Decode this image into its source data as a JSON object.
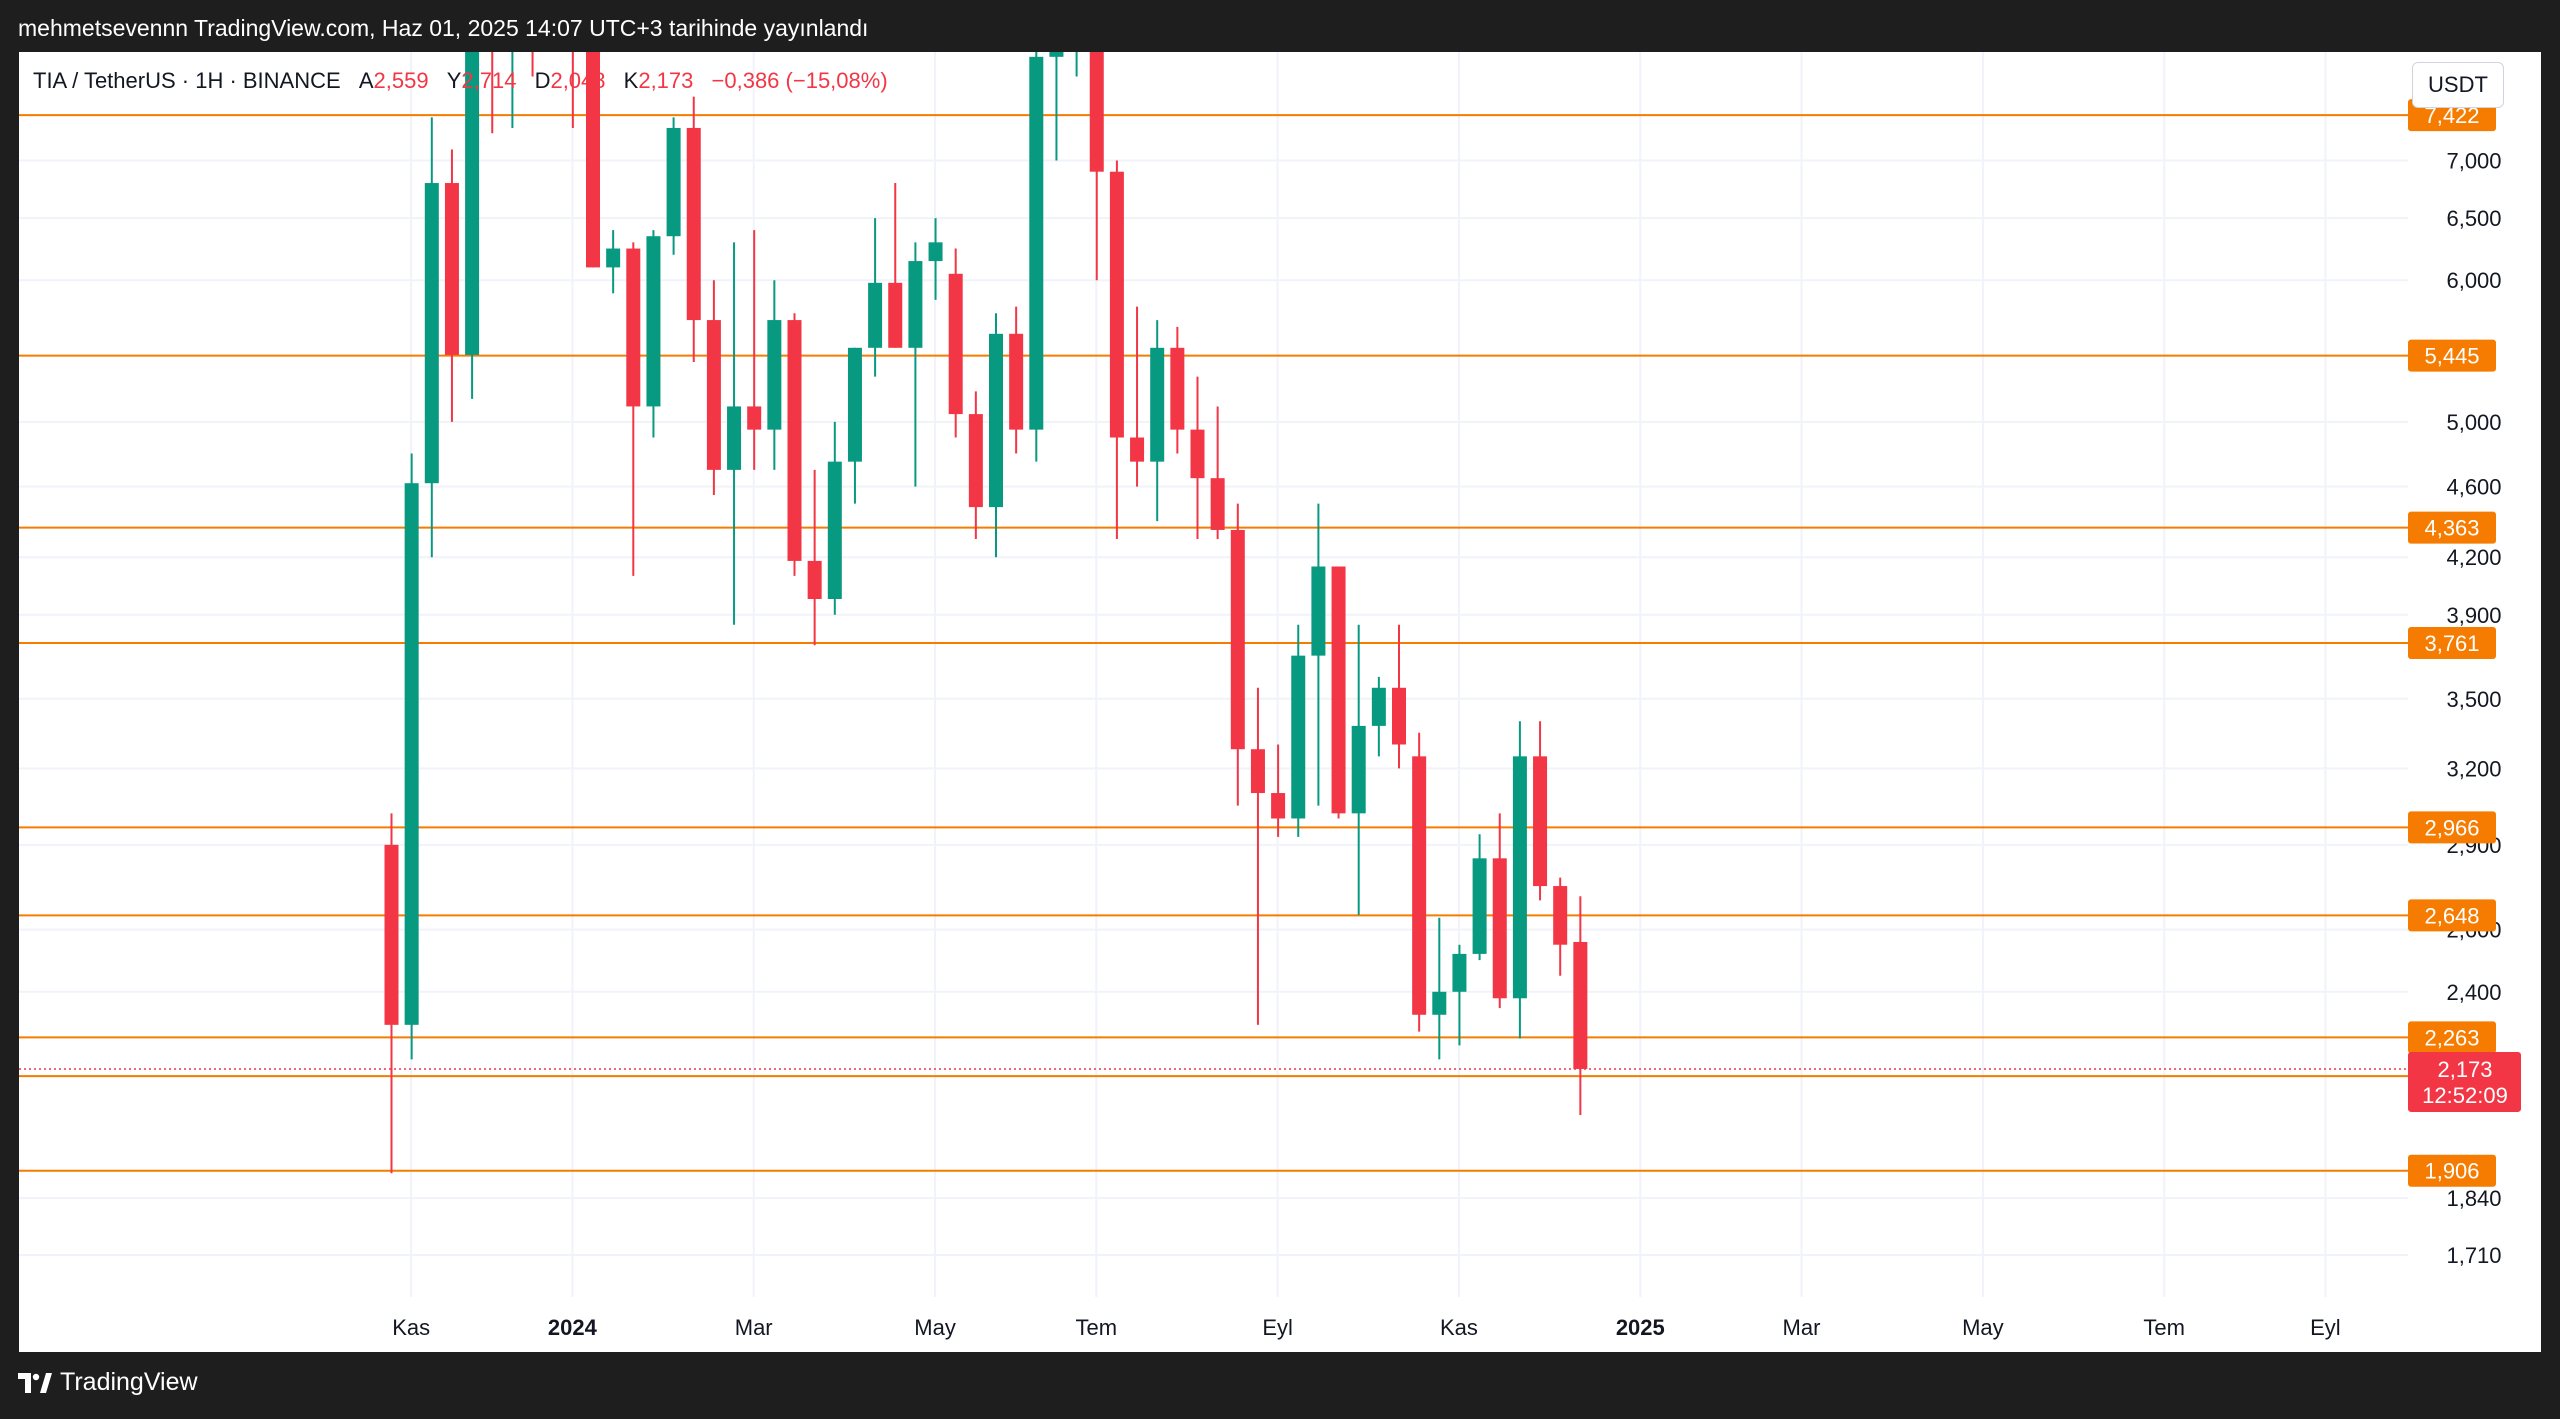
{
  "header": {
    "published_text": "mehmetsevennn TradingView.com, Haz 01, 2025 14:07 UTC+3 tarihinde yayınlandı"
  },
  "legend": {
    "symbol": "TIA / TetherUS · 1H · BINANCE",
    "open_label": "A",
    "open_value": "2,559",
    "high_label": "Y",
    "high_value": "2,714",
    "low_label": "D",
    "low_value": "2,048",
    "close_label": "K",
    "close_value": "2,173",
    "change": "−0,386 (−15,08%)"
  },
  "currency": "USDT",
  "footer": {
    "brand": "TradingView"
  },
  "colors": {
    "up": "#089981",
    "down": "#f23645",
    "level": "#f57c00",
    "grid": "#f0f3fa",
    "text": "#131722"
  },
  "chart_data": {
    "type": "candlestick",
    "y_scale": "log",
    "ylim": [
      1.62,
      8.05
    ],
    "y_ticks": [
      {
        "value": 7.0,
        "label": "7,000"
      },
      {
        "value": 6.5,
        "label": "6,500"
      },
      {
        "value": 6.0,
        "label": "6,000"
      },
      {
        "value": 5.0,
        "label": "5,000"
      },
      {
        "value": 4.6,
        "label": "4,600"
      },
      {
        "value": 4.2,
        "label": "4,200"
      },
      {
        "value": 3.9,
        "label": "3,900"
      },
      {
        "value": 3.5,
        "label": "3,500"
      },
      {
        "value": 3.2,
        "label": "3,200"
      },
      {
        "value": 2.9,
        "label": "2,900"
      },
      {
        "value": 2.6,
        "label": "2,600"
      },
      {
        "value": 2.4,
        "label": "2,400"
      },
      {
        "value": 1.84,
        "label": "1,840"
      },
      {
        "value": 1.71,
        "label": "1,710"
      }
    ],
    "x_ticks": [
      {
        "index": 1.0,
        "label": "Kas",
        "bold": false
      },
      {
        "index": 9.0,
        "label": "2024",
        "bold": true
      },
      {
        "index": 18.0,
        "label": "Mar",
        "bold": false
      },
      {
        "index": 27.0,
        "label": "May",
        "bold": false
      },
      {
        "index": 35.0,
        "label": "Tem",
        "bold": false
      },
      {
        "index": 44.0,
        "label": "Eyl",
        "bold": false
      },
      {
        "index": 53.0,
        "label": "Kas",
        "bold": false
      },
      {
        "index": 62.0,
        "label": "2025",
        "bold": true
      },
      {
        "index": 70.0,
        "label": "Mar",
        "bold": false
      },
      {
        "index": 79.0,
        "label": "May",
        "bold": false
      },
      {
        "index": 88.0,
        "label": "Tem",
        "bold": false
      },
      {
        "index": 96.0,
        "label": "Eyl",
        "bold": false
      }
    ],
    "levels": [
      {
        "value": 7.422,
        "label": "7,422"
      },
      {
        "value": 5.445,
        "label": "5,445"
      },
      {
        "value": 4.363,
        "label": "4,363"
      },
      {
        "value": 3.761,
        "label": "3,761"
      },
      {
        "value": 2.966,
        "label": "2,966"
      },
      {
        "value": 2.648,
        "label": "2,648"
      },
      {
        "value": 2.263,
        "label": "2,263"
      },
      {
        "value": 2.153,
        "label": "2,153"
      },
      {
        "value": 1.906,
        "label": "1,906"
      }
    ],
    "last_price": {
      "value": 2.173,
      "label": "2,173",
      "countdown": "12:52:09"
    },
    "candles": [
      {
        "o": 2.9,
        "h": 3.02,
        "l": 1.9,
        "c": 2.3
      },
      {
        "o": 2.3,
        "h": 4.8,
        "l": 2.2,
        "c": 4.62
      },
      {
        "o": 4.62,
        "h": 7.4,
        "l": 4.2,
        "c": 6.8
      },
      {
        "o": 6.8,
        "h": 7.1,
        "l": 5.0,
        "c": 5.45
      },
      {
        "o": 5.45,
        "h": 9.5,
        "l": 5.15,
        "c": 9.2
      },
      {
        "o": 9.8,
        "h": 10.2,
        "l": 7.25,
        "c": 9.0
      },
      {
        "o": 8.2,
        "h": 9.5,
        "l": 7.3,
        "c": 9.0
      },
      {
        "o": 8.7,
        "h": 9.7,
        "l": 7.8,
        "c": 8.4
      },
      {
        "o": 9.0,
        "h": 10.0,
        "l": 8.25,
        "c": 8.4
      },
      {
        "o": 8.5,
        "h": 9.5,
        "l": 7.3,
        "c": 8.4
      },
      {
        "o": 9.6,
        "h": 10.5,
        "l": 6.1,
        "c": 6.1
      },
      {
        "o": 6.1,
        "h": 6.4,
        "l": 5.9,
        "c": 6.25
      },
      {
        "o": 6.25,
        "h": 6.3,
        "l": 4.1,
        "c": 5.1
      },
      {
        "o": 5.1,
        "h": 6.4,
        "l": 4.9,
        "c": 6.35
      },
      {
        "o": 6.35,
        "h": 7.4,
        "l": 6.2,
        "c": 7.3
      },
      {
        "o": 7.3,
        "h": 7.6,
        "l": 5.4,
        "c": 5.7
      },
      {
        "o": 5.7,
        "h": 6.0,
        "l": 4.55,
        "c": 4.7
      },
      {
        "o": 4.7,
        "h": 6.3,
        "l": 3.85,
        "c": 5.1
      },
      {
        "o": 5.1,
        "h": 6.4,
        "l": 4.7,
        "c": 4.95
      },
      {
        "o": 4.95,
        "h": 6.0,
        "l": 4.7,
        "c": 5.7
      },
      {
        "o": 5.7,
        "h": 5.75,
        "l": 4.1,
        "c": 4.18
      },
      {
        "o": 4.18,
        "h": 4.7,
        "l": 3.75,
        "c": 3.98
      },
      {
        "o": 3.98,
        "h": 5.0,
        "l": 3.9,
        "c": 4.75
      },
      {
        "o": 4.75,
        "h": 5.5,
        "l": 4.5,
        "c": 5.5
      },
      {
        "o": 5.5,
        "h": 6.5,
        "l": 5.3,
        "c": 5.98
      },
      {
        "o": 5.98,
        "h": 6.8,
        "l": 5.5,
        "c": 5.5
      },
      {
        "o": 5.5,
        "h": 6.3,
        "l": 4.6,
        "c": 6.15
      },
      {
        "o": 6.15,
        "h": 6.5,
        "l": 5.85,
        "c": 6.3
      },
      {
        "o": 6.05,
        "h": 6.25,
        "l": 4.9,
        "c": 5.05
      },
      {
        "o": 5.05,
        "h": 5.2,
        "l": 4.3,
        "c": 4.48
      },
      {
        "o": 4.48,
        "h": 5.75,
        "l": 4.2,
        "c": 5.6
      },
      {
        "o": 5.6,
        "h": 5.8,
        "l": 4.8,
        "c": 4.95
      },
      {
        "o": 4.95,
        "h": 8.2,
        "l": 4.75,
        "c": 8.0
      },
      {
        "o": 8.0,
        "h": 8.1,
        "l": 7.0,
        "c": 8.05
      },
      {
        "o": 8.05,
        "h": 8.3,
        "l": 7.8,
        "c": 8.2
      },
      {
        "o": 8.2,
        "h": 8.2,
        "l": 6.0,
        "c": 6.9
      },
      {
        "o": 6.9,
        "h": 7.0,
        "l": 4.3,
        "c": 4.9
      },
      {
        "o": 4.9,
        "h": 5.8,
        "l": 4.6,
        "c": 4.75
      },
      {
        "o": 4.75,
        "h": 5.7,
        "l": 4.4,
        "c": 5.5
      },
      {
        "o": 5.5,
        "h": 5.65,
        "l": 4.8,
        "c": 4.95
      },
      {
        "o": 4.95,
        "h": 5.3,
        "l": 4.3,
        "c": 4.65
      },
      {
        "o": 4.65,
        "h": 5.1,
        "l": 4.3,
        "c": 4.35
      },
      {
        "o": 4.35,
        "h": 4.5,
        "l": 3.05,
        "c": 3.28
      },
      {
        "o": 3.28,
        "h": 3.55,
        "l": 2.3,
        "c": 3.1
      },
      {
        "o": 3.1,
        "h": 3.3,
        "l": 2.93,
        "c": 3.0
      },
      {
        "o": 3.0,
        "h": 3.85,
        "l": 2.93,
        "c": 3.7
      },
      {
        "o": 3.7,
        "h": 4.5,
        "l": 3.05,
        "c": 4.15
      },
      {
        "o": 4.15,
        "h": 4.15,
        "l": 3.0,
        "c": 3.02
      },
      {
        "o": 3.02,
        "h": 3.85,
        "l": 2.65,
        "c": 3.38
      },
      {
        "o": 3.38,
        "h": 3.6,
        "l": 3.25,
        "c": 3.55
      },
      {
        "o": 3.55,
        "h": 3.85,
        "l": 3.2,
        "c": 3.3
      },
      {
        "o": 3.25,
        "h": 3.35,
        "l": 2.28,
        "c": 2.33
      },
      {
        "o": 2.33,
        "h": 2.64,
        "l": 2.2,
        "c": 2.4
      },
      {
        "o": 2.4,
        "h": 2.55,
        "l": 2.24,
        "c": 2.52
      },
      {
        "o": 2.52,
        "h": 2.94,
        "l": 2.5,
        "c": 2.85
      },
      {
        "o": 2.85,
        "h": 3.02,
        "l": 2.35,
        "c": 2.38
      },
      {
        "o": 2.38,
        "h": 3.4,
        "l": 2.26,
        "c": 3.25
      },
      {
        "o": 3.25,
        "h": 3.4,
        "l": 2.7,
        "c": 2.75
      },
      {
        "o": 2.75,
        "h": 2.78,
        "l": 2.45,
        "c": 2.55
      },
      {
        "o": 2.559,
        "h": 2.714,
        "l": 2.048,
        "c": 2.173
      }
    ]
  }
}
